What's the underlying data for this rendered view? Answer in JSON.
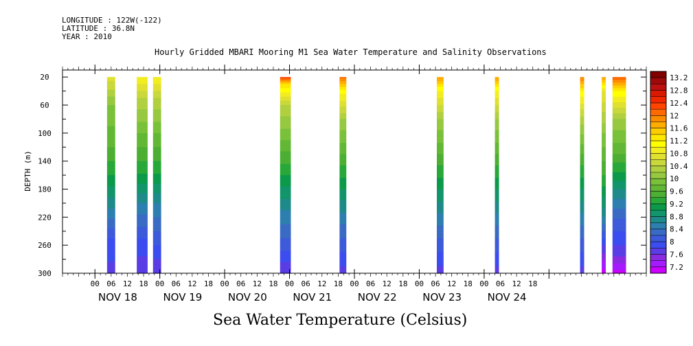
{
  "header": {
    "longitude": "LONGITUDE : 122W(-122)",
    "latitude": "LATITUDE : 36.8N",
    "year": "YEAR : 2010"
  },
  "chart_data": {
    "type": "heatmap",
    "title": "Hourly Gridded MBARI Mooring M1 Sea Water Temperature and Salinity Observations",
    "xlabel": "",
    "ylabel": "DEPTH (m)",
    "bottom_title": "Sea Water Temperature (Celsius)",
    "ylim": [
      300,
      10
    ],
    "yticks": [
      20,
      60,
      100,
      140,
      180,
      220,
      260,
      300
    ],
    "hour_ticks": [
      "00",
      "06",
      "12",
      "18"
    ],
    "day_labels": [
      "NOV 18",
      "NOV 19",
      "NOV 20",
      "NOV 21",
      "NOV 22",
      "NOV 23",
      "NOV 24"
    ],
    "x_hours_range": [
      -12,
      156
    ],
    "colorbar": {
      "levels": [
        7.2,
        7.4,
        7.6,
        7.8,
        8,
        8.2,
        8.4,
        8.6,
        8.8,
        9,
        9.2,
        9.4,
        9.6,
        9.8,
        10,
        10.2,
        10.4,
        10.6,
        10.8,
        11,
        11.2,
        11.4,
        11.6,
        11.8,
        12,
        12.2,
        12.4,
        12.6,
        12.8,
        13,
        13.2,
        13.4
      ],
      "labels": [
        "7.2",
        "7.6",
        "8",
        "8.4",
        "8.8",
        "9.2",
        "9.6",
        "10",
        "10.4",
        "10.8",
        "11.2",
        "11.6",
        "12",
        "12.4",
        "12.8",
        "13.2"
      ],
      "colors": [
        "#cc00ff",
        "#a61aff",
        "#8a2be2",
        "#5a3de5",
        "#3c4df0",
        "#3c5ad9",
        "#3a6bc4",
        "#2d7fb0",
        "#1f8a8a",
        "#12956a",
        "#0a9a4a",
        "#28a838",
        "#4caf33",
        "#62b834",
        "#7ac13a",
        "#96c840",
        "#b0d040",
        "#c9d83a",
        "#e0e030",
        "#f2ed20",
        "#ffff00",
        "#ffe800",
        "#ffcc00",
        "#ffad00",
        "#ff8c00",
        "#ff6a00",
        "#ff4500",
        "#f02800",
        "#d81a00",
        "#bd1010",
        "#9e0a0a",
        "#800000"
      ]
    },
    "segments": [
      {
        "day": "NOV 18",
        "start_hour": 4.5,
        "end_hour": 7.5,
        "depth_max": 300,
        "profile": [
          [
            20,
            10.9
          ],
          [
            60,
            10.2
          ],
          [
            120,
            9.8
          ],
          [
            160,
            9.4
          ],
          [
            200,
            8.9
          ],
          [
            250,
            8.2
          ],
          [
            300,
            7.9
          ]
        ]
      },
      {
        "day": "NOV 18",
        "start_hour": 15.5,
        "end_hour": 19.5,
        "depth_max": 300,
        "profile": [
          [
            20,
            11.2
          ],
          [
            50,
            10.6
          ],
          [
            100,
            10.0
          ],
          [
            150,
            9.5
          ],
          [
            200,
            8.8
          ],
          [
            250,
            8.2
          ],
          [
            300,
            7.8
          ]
        ]
      },
      {
        "day": "NOV 18",
        "start_hour": 21.5,
        "end_hour": 24.5,
        "depth_max": 300,
        "profile": [
          [
            20,
            11.2
          ],
          [
            50,
            10.6
          ],
          [
            100,
            10.0
          ],
          [
            150,
            9.5
          ],
          [
            200,
            8.8
          ],
          [
            250,
            8.3
          ],
          [
            300,
            7.8
          ]
        ]
      },
      {
        "day": "NOV 20",
        "start_hour": 68.5,
        "end_hour": 72.5,
        "depth_max": 300,
        "profile": [
          [
            20,
            12.6
          ],
          [
            30,
            11.6
          ],
          [
            60,
            10.6
          ],
          [
            110,
            10.0
          ],
          [
            160,
            9.4
          ],
          [
            210,
            8.8
          ],
          [
            260,
            8.3
          ],
          [
            300,
            7.8
          ]
        ]
      },
      {
        "day": "NOV 21",
        "start_hour": 90.5,
        "end_hour": 93.0,
        "depth_max": 300,
        "profile": [
          [
            20,
            12.3
          ],
          [
            40,
            11.3
          ],
          [
            80,
            10.4
          ],
          [
            130,
            9.8
          ],
          [
            180,
            9.2
          ],
          [
            230,
            8.6
          ],
          [
            280,
            8.1
          ],
          [
            300,
            7.9
          ]
        ]
      },
      {
        "day": "NOV 22",
        "start_hour": 126.5,
        "end_hour": 129.0,
        "depth_max": 300,
        "profile": [
          [
            20,
            12.0
          ],
          [
            40,
            11.2
          ],
          [
            80,
            10.4
          ],
          [
            130,
            9.8
          ],
          [
            180,
            9.2
          ],
          [
            240,
            8.5
          ],
          [
            300,
            7.9
          ]
        ]
      },
      {
        "day": "NOV 23",
        "start_hour": 148.0,
        "end_hour": 149.5,
        "depth_max": 300,
        "profile": [
          [
            20,
            12.0
          ],
          [
            40,
            11.2
          ],
          [
            80,
            10.4
          ],
          [
            130,
            9.8
          ],
          [
            180,
            9.2
          ],
          [
            240,
            8.5
          ],
          [
            300,
            7.9
          ]
        ]
      },
      {
        "day": "NOV 24",
        "start_hour": 179.5,
        "end_hour": 181.0,
        "depth_max": 300,
        "profile": [
          [
            20,
            12.2
          ],
          [
            40,
            11.4
          ],
          [
            80,
            10.5
          ],
          [
            130,
            9.8
          ],
          [
            180,
            9.2
          ],
          [
            240,
            8.5
          ],
          [
            300,
            7.9
          ]
        ]
      },
      {
        "day": "NOV 24",
        "start_hour": 187.5,
        "end_hour": 189.0,
        "depth_max": 300,
        "profile": [
          [
            20,
            12.0
          ],
          [
            40,
            11.0
          ],
          [
            100,
            10.2
          ],
          [
            160,
            9.6
          ],
          [
            220,
            8.8
          ],
          [
            260,
            8.0
          ],
          [
            300,
            7.3
          ]
        ]
      },
      {
        "day": "NOV 24",
        "start_hour": 191.5,
        "end_hour": 196.5,
        "depth_max": 300,
        "profile": [
          [
            20,
            12.4
          ],
          [
            40,
            11.4
          ],
          [
            80,
            10.4
          ],
          [
            130,
            9.8
          ],
          [
            180,
            9.0
          ],
          [
            230,
            8.3
          ],
          [
            270,
            7.9
          ],
          [
            300,
            7.3
          ]
        ]
      }
    ]
  }
}
